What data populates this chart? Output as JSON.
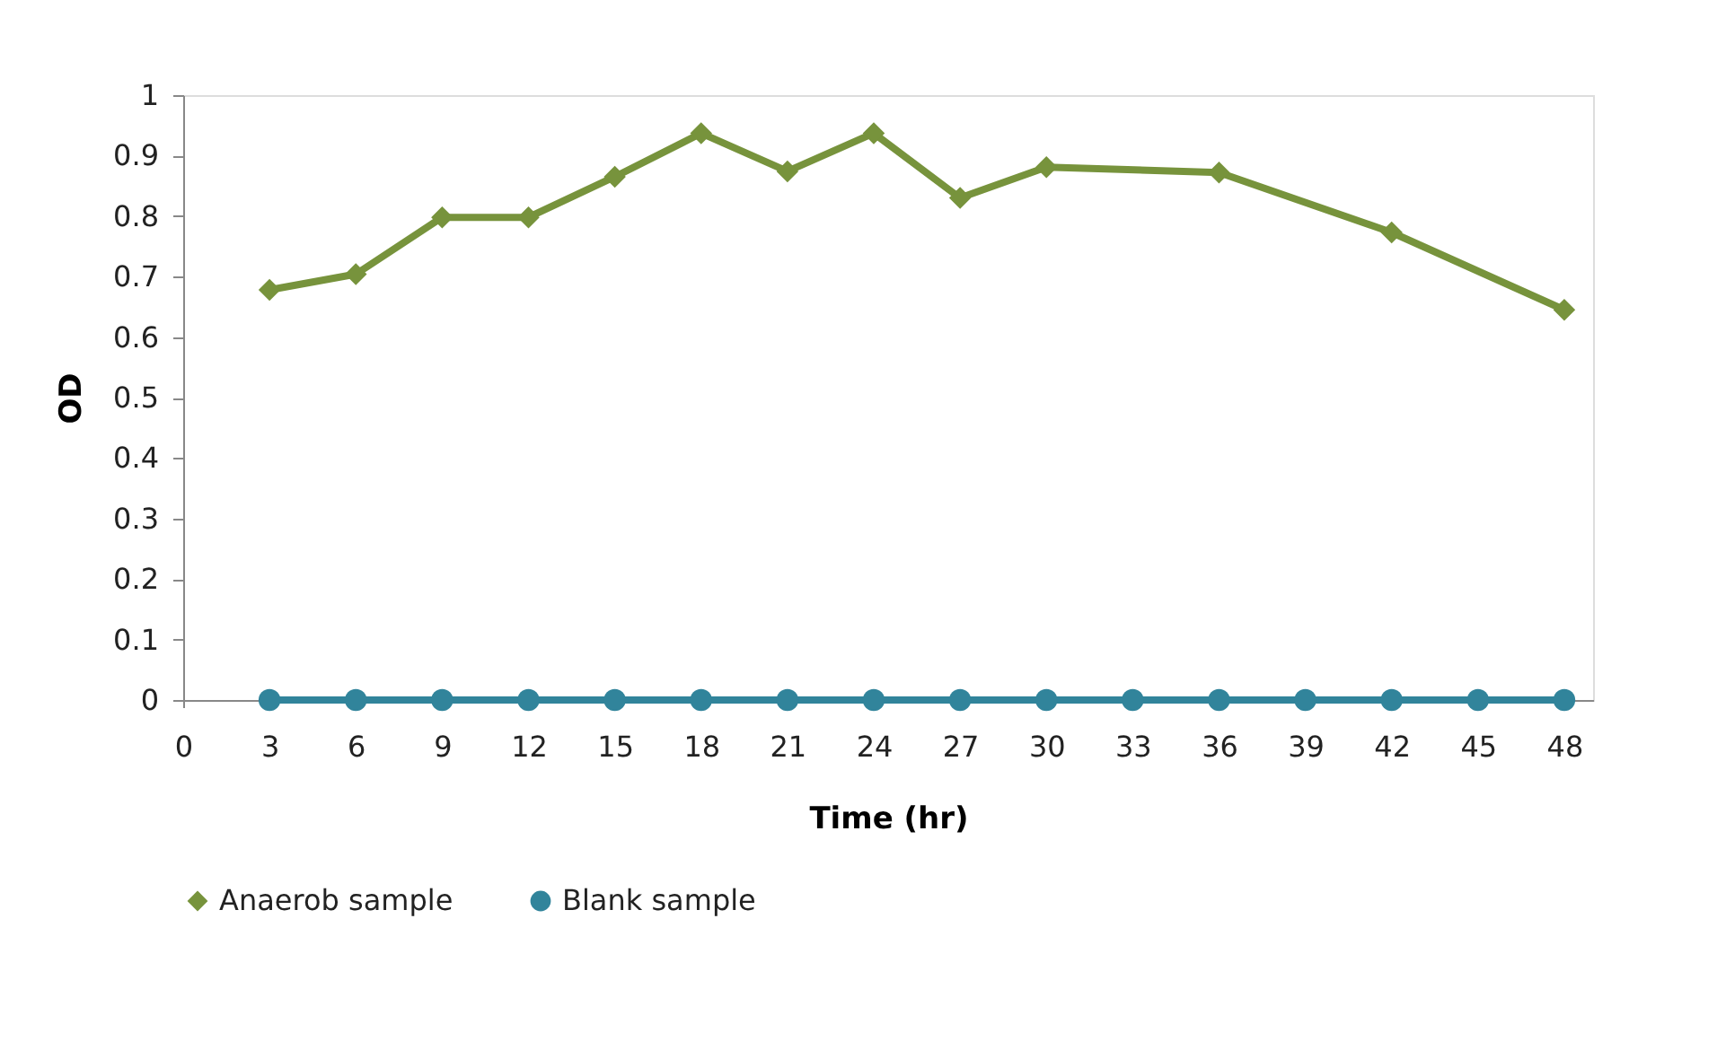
{
  "chart_data": {
    "type": "line",
    "xlabel": "Time (hr)",
    "ylabel": "OD",
    "xlim": [
      0,
      49
    ],
    "xticks": [
      0,
      3,
      6,
      9,
      12,
      15,
      18,
      21,
      24,
      27,
      30,
      33,
      36,
      39,
      42,
      45,
      48
    ],
    "ylim": [
      0,
      1
    ],
    "yticks": [
      0,
      0.1,
      0.2,
      0.3,
      0.4,
      0.5,
      0.6,
      0.7,
      0.8,
      0.9,
      1
    ],
    "grid": false,
    "legend": "bottom",
    "line_style": "solid",
    "series": [
      {
        "name": "Anaerob sample",
        "color": "#77933c",
        "marker": "diamond",
        "x": [
          3,
          6,
          9,
          12,
          15,
          18,
          21,
          24,
          27,
          30,
          36,
          42,
          48
        ],
        "values": [
          0.678,
          0.704,
          0.798,
          0.798,
          0.865,
          0.937,
          0.874,
          0.937,
          0.83,
          0.881,
          0.872,
          0.773,
          0.645
        ]
      },
      {
        "name": "Blank sample",
        "color": "#31849b",
        "marker": "circle",
        "x": [
          3,
          6,
          9,
          12,
          15,
          18,
          21,
          24,
          27,
          30,
          33,
          36,
          39,
          42,
          45,
          48
        ],
        "values": [
          0,
          0,
          0,
          0,
          0,
          0,
          0,
          0,
          0,
          0,
          0,
          0,
          0,
          0,
          0,
          0
        ]
      }
    ]
  }
}
